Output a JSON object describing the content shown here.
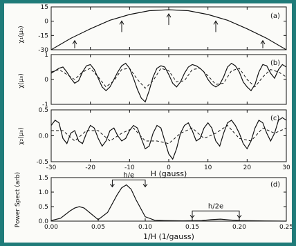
{
  "chart_data": [
    {
      "panel": "(a)",
      "type": "line",
      "ylabel": "χ₁(μ₀)",
      "xlim": [
        -30,
        30
      ],
      "ylim": [
        -30,
        15
      ],
      "yticks": [
        "15",
        "0",
        "-15",
        "-30"
      ],
      "arrow_positions": [
        -24,
        -12,
        0,
        12,
        24
      ],
      "series": [
        {
          "style": "solid",
          "x": [
            -30,
            -25,
            -20,
            -15,
            -10,
            -5,
            0,
            5,
            10,
            15,
            20,
            25,
            30
          ],
          "y": [
            -31,
            -18,
            -8,
            1,
            7,
            11,
            12,
            11,
            7,
            1,
            -8,
            -18,
            -31
          ]
        }
      ]
    },
    {
      "panel": "(b)",
      "type": "line",
      "ylabel": "χ(μ₀)",
      "xlim": [
        -30,
        30
      ],
      "ylim": [
        -1,
        1
      ],
      "yticks": [
        "1",
        "0",
        "-1"
      ],
      "series": [
        {
          "style": "solid",
          "x": [
            -30,
            -29,
            -28,
            -27,
            -26,
            -25,
            -24,
            -23,
            -22,
            -21,
            -20,
            -19,
            -18,
            -17,
            -16,
            -15,
            -14,
            -13,
            -12,
            -11,
            -10,
            -9,
            -8,
            -7,
            -6,
            -5,
            -4,
            -3,
            -2,
            -1,
            0,
            1,
            2,
            3,
            4,
            5,
            6,
            7,
            8,
            9,
            10,
            11,
            12,
            13,
            14,
            15,
            16,
            17,
            18,
            19,
            20,
            21,
            22,
            23,
            24,
            25,
            26,
            27,
            28,
            29,
            30
          ],
          "y": [
            0.25,
            0.35,
            0.45,
            0.5,
            0.3,
            0.05,
            -0.15,
            -0.05,
            0.3,
            0.55,
            0.6,
            0.4,
            0.05,
            -0.3,
            -0.45,
            -0.3,
            0.0,
            0.3,
            0.55,
            0.65,
            0.45,
            0.05,
            -0.4,
            -0.75,
            -0.9,
            -0.45,
            0.1,
            0.45,
            0.55,
            0.5,
            0.2,
            -0.15,
            -0.3,
            -0.1,
            0.25,
            0.5,
            0.6,
            0.55,
            0.45,
            0.3,
            0.0,
            -0.2,
            -0.3,
            -0.2,
            0.1,
            0.5,
            0.65,
            0.55,
            0.3,
            -0.1,
            -0.3,
            -0.45,
            -0.2,
            0.3,
            0.6,
            0.55,
            0.25,
            0.05,
            0.4,
            0.6,
            0.5
          ]
        },
        {
          "style": "dashed",
          "x": [
            -30,
            -28,
            -26,
            -24,
            -22,
            -20,
            -18,
            -16,
            -14,
            -12,
            -10,
            -8,
            -6,
            -4,
            -2,
            0,
            2,
            4,
            6,
            8,
            10,
            12,
            14,
            16,
            18,
            20,
            22,
            24,
            26,
            28,
            30
          ],
          "y": [
            0.3,
            0.4,
            0.2,
            0.0,
            0.3,
            0.45,
            0.1,
            -0.3,
            -0.05,
            0.4,
            0.45,
            0.0,
            -0.35,
            -0.05,
            0.45,
            0.35,
            -0.1,
            -0.05,
            0.4,
            0.45,
            0.15,
            -0.2,
            -0.15,
            0.35,
            0.45,
            0.0,
            -0.3,
            0.1,
            0.4,
            0.3,
            0.1
          ]
        }
      ]
    },
    {
      "panel": "(c)",
      "type": "line",
      "ylabel": "χ₂(μ₀)",
      "xlim": [
        -30,
        30
      ],
      "ylim": [
        -0.5,
        0.5
      ],
      "yticks": [
        "0.5",
        "0.0",
        "-0.5"
      ],
      "series": [
        {
          "style": "solid",
          "x": [
            -30,
            -29,
            -28,
            -27,
            -26,
            -25,
            -24,
            -23,
            -22,
            -21,
            -20,
            -19,
            -18,
            -17,
            -16,
            -15,
            -14,
            -13,
            -12,
            -11,
            -10,
            -9,
            -8,
            -7,
            -6,
            -5,
            -4,
            -3,
            -2,
            -1,
            0,
            1,
            2,
            3,
            4,
            5,
            6,
            7,
            8,
            9,
            10,
            11,
            12,
            13,
            14,
            15,
            16,
            17,
            18,
            19,
            20,
            21,
            22,
            23,
            24,
            25,
            26,
            27,
            28,
            29,
            30
          ],
          "y": [
            0.2,
            0.3,
            0.25,
            -0.05,
            -0.15,
            0.05,
            0.1,
            -0.1,
            -0.15,
            0.05,
            0.2,
            0.15,
            -0.05,
            -0.2,
            -0.1,
            0.1,
            0.15,
            0.0,
            -0.1,
            -0.05,
            0.1,
            0.2,
            0.15,
            -0.05,
            -0.25,
            -0.2,
            0.05,
            0.2,
            0.15,
            -0.1,
            -0.35,
            -0.45,
            -0.25,
            0.05,
            0.2,
            0.25,
            0.1,
            -0.1,
            -0.05,
            0.15,
            0.25,
            0.15,
            -0.1,
            -0.2,
            0.05,
            0.25,
            0.3,
            0.2,
            0.05,
            -0.15,
            -0.25,
            -0.1,
            0.15,
            0.3,
            0.25,
            0.05,
            -0.1,
            0.05,
            0.3,
            0.35,
            0.3
          ]
        },
        {
          "style": "dashed",
          "x": [
            -30,
            -27,
            -24,
            -21,
            -18,
            -15,
            -12,
            -9,
            -6,
            -3,
            0,
            3,
            6,
            9,
            12,
            15,
            18,
            21,
            24,
            27,
            30
          ],
          "y": [
            0.1,
            0.1,
            -0.1,
            0.1,
            0.1,
            -0.1,
            0.05,
            0.15,
            -0.1,
            -0.1,
            -0.15,
            0.05,
            0.15,
            -0.05,
            0.05,
            0.2,
            -0.05,
            -0.1,
            0.15,
            0.05,
            0.15
          ]
        }
      ]
    },
    {
      "panel": "(d)",
      "type": "line",
      "xlabel": "1/H (1/gauss)",
      "ylabel": "Power Spect (arb)",
      "xlim": [
        0,
        0.25
      ],
      "ylim": [
        0,
        1.5
      ],
      "yticks": [
        "1.5",
        "1.0",
        "0.5",
        "0.0"
      ],
      "xticks": [
        "0.00",
        "0.05",
        "0.10",
        "0.15",
        "0.20",
        "0.25"
      ],
      "series": [
        {
          "style": "solid",
          "x": [
            0,
            0.01,
            0.02,
            0.025,
            0.03,
            0.035,
            0.04,
            0.05,
            0.06,
            0.07,
            0.075,
            0.08,
            0.085,
            0.09,
            0.1,
            0.11,
            0.12,
            0.14,
            0.16,
            0.17,
            0.18,
            0.19,
            0.2,
            0.22,
            0.25
          ],
          "y": [
            0.02,
            0.1,
            0.35,
            0.45,
            0.5,
            0.45,
            0.32,
            0.05,
            0.3,
            0.9,
            1.15,
            1.25,
            1.1,
            0.75,
            0.15,
            0.03,
            0.02,
            0.01,
            0.02,
            0.05,
            0.07,
            0.04,
            0.02,
            0.01,
            0.0
          ]
        }
      ],
      "annotations": [
        {
          "text": "h/e",
          "bracket": [
            0.065,
            0.1
          ],
          "y": 1.42
        },
        {
          "text": "h/2e",
          "bracket": [
            0.15,
            0.2
          ],
          "y": 0.35
        }
      ]
    }
  ],
  "shared": {
    "xlabel_top": "H (gauss)",
    "xticks_top": [
      "-30",
      "-20",
      "-10",
      "0",
      "10",
      "20",
      "30"
    ]
  }
}
